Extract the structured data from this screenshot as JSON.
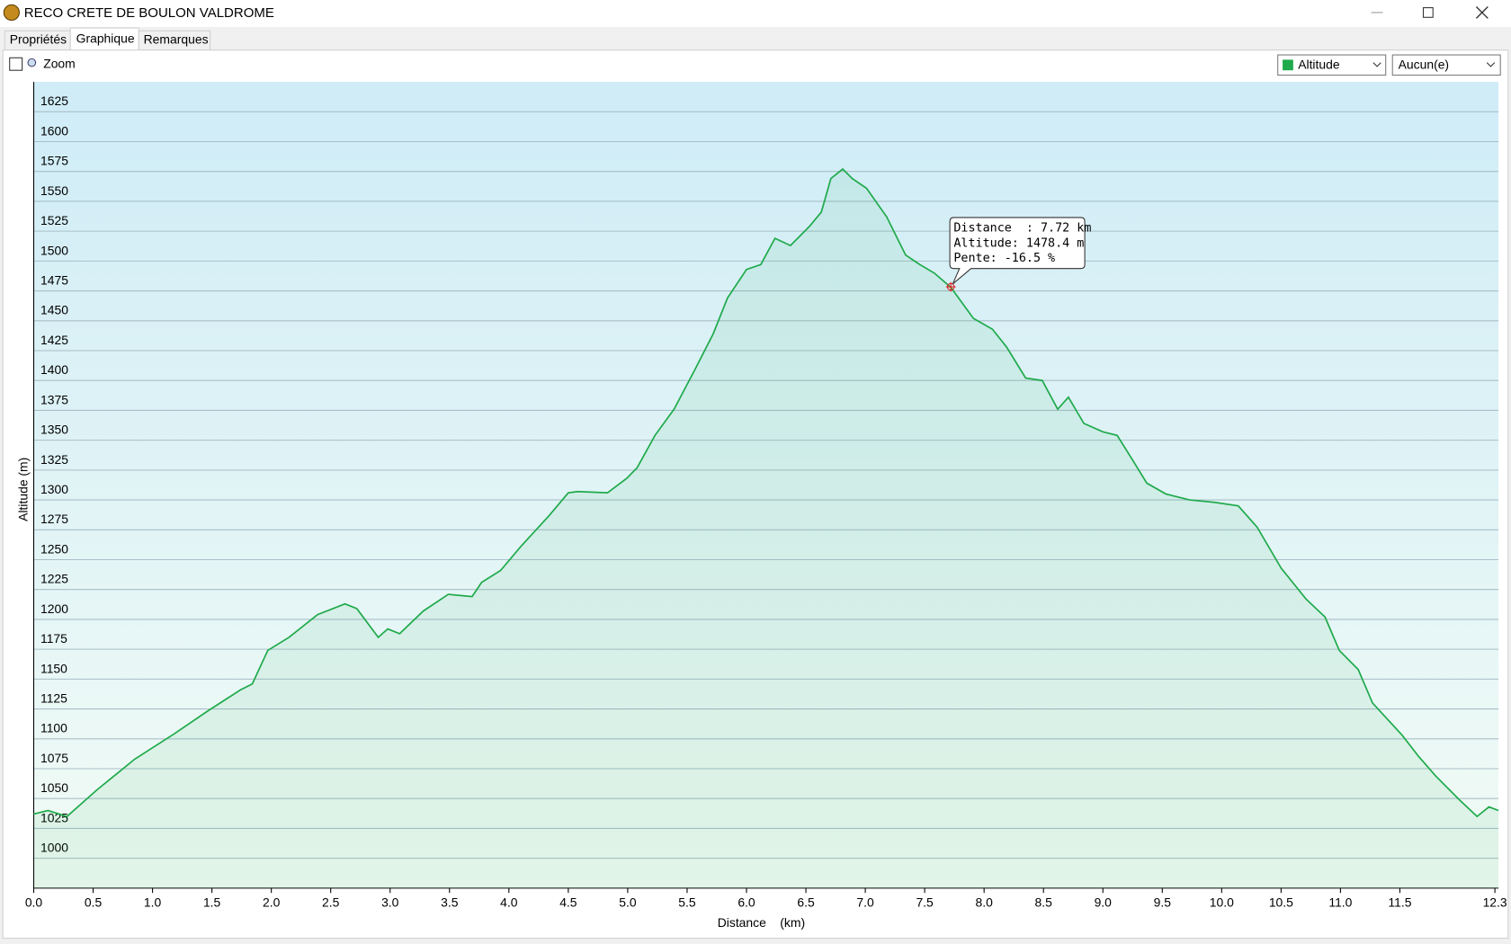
{
  "window": {
    "title": "RECO CRETE DE BOULON VALDROME"
  },
  "tabs": [
    "Propriétés",
    "Graphique",
    "Remarques"
  ],
  "toolbar": {
    "zoom": "Zoom",
    "second_select": "Aucun(e)"
  },
  "chart_data": {
    "type": "line",
    "x_label": "Distance    (km)",
    "y_label": "Altitude (m)",
    "x": [
      0,
      0.12,
      0.28,
      0.53,
      0.85,
      1.18,
      1.46,
      1.74,
      1.84,
      1.97,
      2.15,
      2.39,
      2.62,
      2.72,
      2.9,
      2.98,
      3.08,
      3.28,
      3.49,
      3.69,
      3.77,
      3.93,
      4.1,
      4.34,
      4.5,
      4.58,
      4.83,
      4.99,
      5.08,
      5.23,
      5.39,
      5.56,
      5.72,
      5.84,
      6.0,
      6.12,
      6.24,
      6.37,
      6.53,
      6.63,
      6.71,
      6.81,
      6.89,
      7.01,
      7.18,
      7.34,
      7.46,
      7.58,
      7.72,
      7.91,
      8.07,
      8.19,
      8.35,
      8.49,
      8.62,
      8.71,
      8.84,
      9.0,
      9.12,
      9.24,
      9.37,
      9.53,
      9.73,
      9.94,
      10.14,
      10.3,
      10.5,
      10.71,
      10.87,
      10.99,
      11.15,
      11.27,
      11.52,
      11.66,
      11.8,
      12.0,
      12.15,
      12.25,
      12.33
    ],
    "series": [
      {
        "name": "Altitude",
        "color": "#1faa4b",
        "values": [
          1037,
          1040,
          1035,
          1057,
          1083,
          1104,
          1123,
          1141,
          1146,
          1174,
          1185,
          1204,
          1213,
          1209,
          1185,
          1192,
          1188,
          1207,
          1221,
          1219,
          1231,
          1241,
          1261,
          1287,
          1306,
          1307,
          1306,
          1318,
          1327,
          1354,
          1376,
          1408,
          1439,
          1469,
          1493,
          1497,
          1519,
          1513,
          1529,
          1541,
          1569,
          1577,
          1569,
          1561,
          1537,
          1505,
          1497,
          1490,
          1478,
          1452,
          1443,
          1428,
          1402,
          1400,
          1376,
          1386,
          1364,
          1357,
          1354,
          1335,
          1314,
          1305,
          1300,
          1298,
          1295,
          1277,
          1243,
          1217,
          1202,
          1174,
          1158,
          1130,
          1103,
          1085,
          1069,
          1049,
          1035,
          1043,
          1040
        ]
      }
    ],
    "xlim": [
      0,
      12.33
    ],
    "ylim": [
      975,
      1650
    ],
    "xticks": [
      {
        "value": 0,
        "label": "0.0"
      },
      0.5,
      {
        "value": 1,
        "label": "1.0"
      },
      1.5,
      {
        "value": 2,
        "label": "2.0"
      },
      2.5,
      {
        "value": 3,
        "label": "3.0"
      },
      3.5,
      {
        "value": 4,
        "label": "4.0"
      },
      4.5,
      {
        "value": 5,
        "label": "5.0"
      },
      5.5,
      {
        "value": 6,
        "label": "6.0"
      },
      6.5,
      {
        "value": 7,
        "label": "7.0"
      },
      7.5,
      {
        "value": 8,
        "label": "8.0"
      },
      8.5,
      {
        "value": 9,
        "label": "9.0"
      },
      9.5,
      {
        "value": 10,
        "label": "10.0"
      },
      10.5,
      {
        "value": 11,
        "label": "11.0"
      },
      11.5,
      12.3
    ],
    "yticks": [
      1000,
      1025,
      1050,
      1075,
      1100,
      1125,
      1150,
      1175,
      1200,
      1225,
      1250,
      1275,
      1300,
      1325,
      1350,
      1375,
      1400,
      1425,
      1450,
      1475,
      1500,
      1525,
      1550,
      1575,
      1600,
      1625
    ],
    "grid": true,
    "tooltip": {
      "x": 7.72,
      "y": 1478.4,
      "lines": [
        "Distance  : 7.72 km",
        "Altitude: 1478.4 m",
        "Pente: -16.5 %"
      ]
    }
  }
}
